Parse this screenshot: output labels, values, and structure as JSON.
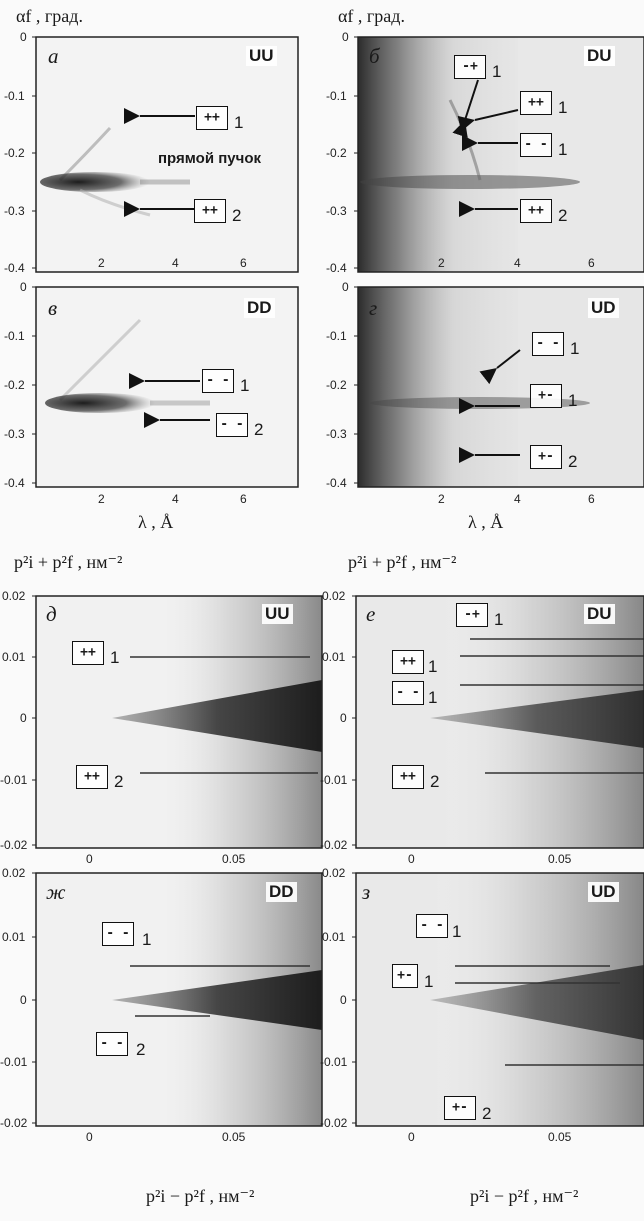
{
  "axes": {
    "alpha_title": "αf , град.",
    "lambda_title": "λ , Å",
    "sum_title": "p²i + p²f , нм⁻²",
    "diff_title": "p²i − p²f , нм⁻²"
  },
  "ticks": {
    "alpha_y": [
      "0",
      "-0.1",
      "-0.2",
      "-0.3",
      "-0.4"
    ],
    "lambda_x": [
      "2",
      "4",
      "6"
    ],
    "p_y": [
      "0.02",
      "0.01",
      "0",
      "-0.01",
      "-0.02"
    ],
    "p_x": [
      "0",
      "0.05"
    ]
  },
  "panels": {
    "a": {
      "label": "а",
      "mode": "UU"
    },
    "b": {
      "label": "б",
      "mode": "DU"
    },
    "v": {
      "label": "в",
      "mode": "DD"
    },
    "g": {
      "label": "г",
      "mode": "UD"
    },
    "d": {
      "label": "д",
      "mode": "UU"
    },
    "e": {
      "label": "е",
      "mode": "DU"
    },
    "zh": {
      "label": "ж",
      "mode": "DD"
    },
    "z": {
      "label": "з",
      "mode": "UD"
    }
  },
  "annotations": {
    "direct_beam": "прямой пучок",
    "pp": "++",
    "mm": "- -",
    "mp": "-+",
    "pm": "+-",
    "one": "1",
    "two": "2"
  },
  "colors": {
    "ink": "#1a1a1a",
    "paper": "#fafafa"
  }
}
